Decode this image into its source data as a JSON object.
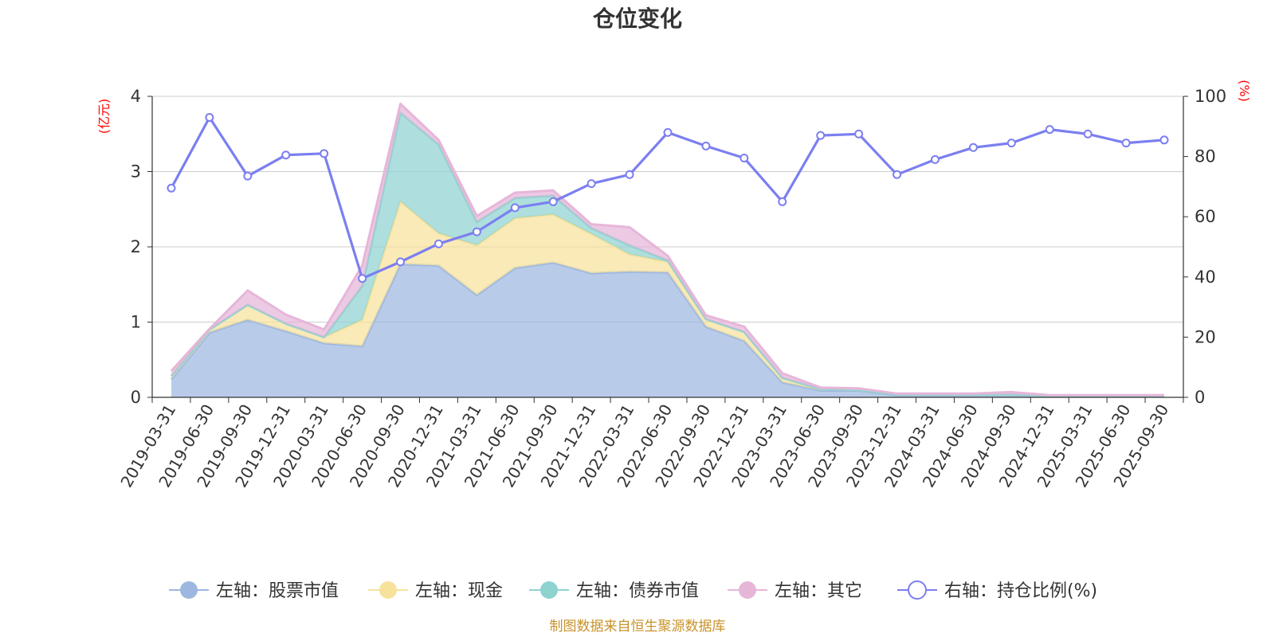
{
  "chart_data": {
    "type": "area",
    "title": "仓位变化",
    "source": "制图数据来自恒生聚源数据库",
    "left_unit": "(亿元)",
    "right_unit": "(%)",
    "ylim_left": [
      0,
      4
    ],
    "yticks_left": [
      0,
      1,
      2,
      3,
      4
    ],
    "ylim_right": [
      0,
      100
    ],
    "yticks_right": [
      0,
      20,
      40,
      60,
      80,
      100
    ],
    "categories": [
      "2019-03-31",
      "2019-06-30",
      "2019-09-30",
      "2019-12-31",
      "2020-03-31",
      "2020-06-30",
      "2020-09-30",
      "2020-12-31",
      "2021-03-31",
      "2021-06-30",
      "2021-09-30",
      "2021-12-31",
      "2022-03-31",
      "2022-06-30",
      "2022-09-30",
      "2022-12-31",
      "2023-03-31",
      "2023-06-30",
      "2023-09-30",
      "2023-12-31",
      "2024-03-31",
      "2024-06-30",
      "2024-09-30",
      "2024-12-31",
      "2025-03-31",
      "2025-06-30",
      "2025-09-30"
    ],
    "area_series": [
      {
        "name": "左轴：股票市值",
        "color": "#9db7e0",
        "values": [
          0.24,
          0.86,
          1.03,
          0.88,
          0.72,
          0.68,
          1.77,
          1.75,
          1.36,
          1.72,
          1.79,
          1.65,
          1.67,
          1.66,
          0.94,
          0.75,
          0.2,
          0.09,
          0.09,
          0.03,
          0.03,
          0.03,
          0.03,
          0.02,
          0.02,
          0.02,
          0.02
        ]
      },
      {
        "name": "左轴：现金",
        "color": "#f7e29c",
        "values": [
          0.04,
          0.04,
          0.2,
          0.1,
          0.08,
          0.35,
          0.83,
          0.43,
          0.66,
          0.66,
          0.64,
          0.52,
          0.23,
          0.14,
          0.1,
          0.12,
          0.06,
          0.02,
          0.01,
          0.01,
          0.01,
          0.01,
          0.01,
          0.0,
          0.0,
          0.0,
          0.0
        ]
      },
      {
        "name": "左轴：债券市值",
        "color": "#8fd3d1",
        "values": [
          0,
          0,
          0,
          0,
          0,
          0.45,
          1.18,
          1.18,
          0.31,
          0.27,
          0.25,
          0.08,
          0.12,
          0.02,
          0,
          0,
          0,
          0,
          0,
          0,
          0,
          0,
          0,
          0,
          0,
          0,
          0
        ]
      },
      {
        "name": "左轴：其它",
        "color": "#e6b6d9",
        "values": [
          0.07,
          0.01,
          0.19,
          0.12,
          0.1,
          0.27,
          0.12,
          0.06,
          0.08,
          0.07,
          0.07,
          0.05,
          0.24,
          0.06,
          0.05,
          0.07,
          0.06,
          0.02,
          0.02,
          0.01,
          0.01,
          0.01,
          0.03,
          0.01,
          0.01,
          0.01,
          0.01
        ]
      }
    ],
    "line_series": {
      "name": "右轴：持仓比例(%)",
      "color": "#7b7ff0",
      "values": [
        69.5,
        93,
        73.5,
        80.5,
        81,
        39.5,
        45,
        51,
        55,
        63,
        65,
        71,
        74,
        88,
        83.5,
        79.5,
        65,
        87,
        87.5,
        74,
        79,
        83,
        84.5,
        89,
        87.5,
        84.5,
        85.5
      ]
    }
  }
}
